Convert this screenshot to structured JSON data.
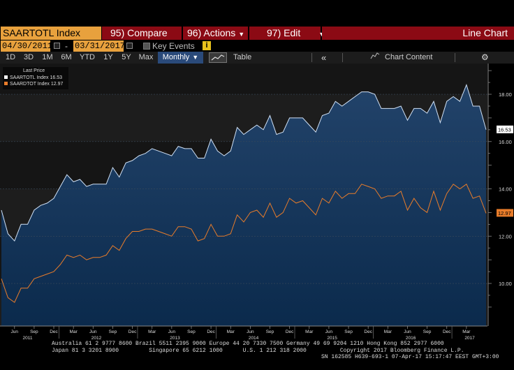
{
  "toolbar_top": {
    "ticker": "SAARTOTL Index",
    "compare_label": "95) Compare",
    "actions_label": "96) Actions",
    "edit_label": "97) Edit",
    "view_title": "Line Chart"
  },
  "dates": {
    "start": "04/30/2011",
    "end": "03/31/2017",
    "key_events_label": "Key Events",
    "info_icon": "i"
  },
  "range_bar": {
    "ranges": [
      "1D",
      "3D",
      "1M",
      "6M",
      "YTD",
      "1Y",
      "5Y",
      "Max"
    ],
    "frequency": "Monthly",
    "table_label": "Table",
    "chart_content_label": "Chart Content",
    "collapse_icon": "double-chevron-left-icon",
    "settings_icon": "gear-icon"
  },
  "legend": {
    "header": "Last Price",
    "items": [
      {
        "name": "SAARTOTL Index",
        "value": "16.53",
        "color": "#ffffff"
      },
      {
        "name": "SAARDTOT Index",
        "value": "12.97",
        "color": "#e87c2a"
      }
    ]
  },
  "chart_data": {
    "type": "line",
    "frequency": "monthly",
    "start": "2011-04",
    "ylim": [
      8.2,
      19.3
    ],
    "y_ticks": [
      "10.00",
      "12.00",
      "14.00",
      "16.00",
      "18.00"
    ],
    "x_tick_labels": [
      "Jun",
      "Sep",
      "Dec",
      "Mar",
      "Jun",
      "Sep",
      "Dec",
      "Mar",
      "Jun",
      "Sep",
      "Dec",
      "Mar",
      "Jun",
      "Sep",
      "Dec",
      "Mar",
      "Jun",
      "Sep",
      "Dec",
      "Mar",
      "Jun",
      "Sep",
      "Dec",
      "Mar"
    ],
    "year_labels": [
      "2011",
      "2012",
      "2013",
      "2014",
      "2015",
      "2016",
      "2017"
    ],
    "series": [
      {
        "name": "SAARTOTL Index",
        "color": "#cfe0f5",
        "last": "16.53",
        "values": [
          13.1,
          12.1,
          11.8,
          12.5,
          12.5,
          13.1,
          13.3,
          13.4,
          13.6,
          14.1,
          14.6,
          14.3,
          14.4,
          14.1,
          14.2,
          14.2,
          14.2,
          14.9,
          14.5,
          15.1,
          15.2,
          15.4,
          15.5,
          15.7,
          15.6,
          15.5,
          15.4,
          15.8,
          15.7,
          15.7,
          15.3,
          15.3,
          16.1,
          15.6,
          15.4,
          15.6,
          16.6,
          16.3,
          16.5,
          16.7,
          16.5,
          17.1,
          16.3,
          16.4,
          17.0,
          17.0,
          17.0,
          16.7,
          16.4,
          17.1,
          17.2,
          17.7,
          17.5,
          17.7,
          17.9,
          18.1,
          18.1,
          18.0,
          17.4,
          17.4,
          17.4,
          17.5,
          16.9,
          17.4,
          17.4,
          17.2,
          17.7,
          16.8,
          17.7,
          17.9,
          17.7,
          18.4,
          17.5,
          17.5,
          16.5
        ]
      },
      {
        "name": "SAARDTOT Index",
        "color": "#e87c2a",
        "last": "12.97",
        "values": [
          10.2,
          9.4,
          9.2,
          9.8,
          9.8,
          10.2,
          10.3,
          10.4,
          10.5,
          10.8,
          11.2,
          11.1,
          11.2,
          11.0,
          11.1,
          11.1,
          11.2,
          11.6,
          11.4,
          11.9,
          12.2,
          12.2,
          12.3,
          12.3,
          12.2,
          12.1,
          12.0,
          12.4,
          12.4,
          12.3,
          11.8,
          11.9,
          12.5,
          12.0,
          12.0,
          12.1,
          12.9,
          12.6,
          13.0,
          13.1,
          12.8,
          13.4,
          12.8,
          13.0,
          13.6,
          13.4,
          13.5,
          13.2,
          12.9,
          13.6,
          13.4,
          13.9,
          13.6,
          13.8,
          13.8,
          14.2,
          14.1,
          14.0,
          13.6,
          13.7,
          13.7,
          13.9,
          13.1,
          13.6,
          13.2,
          13.0,
          13.9,
          13.1,
          13.8,
          14.2,
          14.0,
          14.2,
          13.6,
          13.7,
          12.97
        ]
      }
    ]
  },
  "footer": {
    "line1": "Australia 61 2 9777 8600 Brazil 5511 2395 9000 Europe 44 20 7330 7500 Germany 49 69 9204 1210 Hong Kong 852 2977 6000",
    "line2": "Japan 81 3 3201 8900         Singapore 65 6212 1000      U.S. 1 212 318 2000          Copyright 2017 Bloomberg Finance L.P.",
    "line3": "SN 162585 H639-693-1 07-Apr-17 15:17:47 EEST GMT+3:00"
  }
}
